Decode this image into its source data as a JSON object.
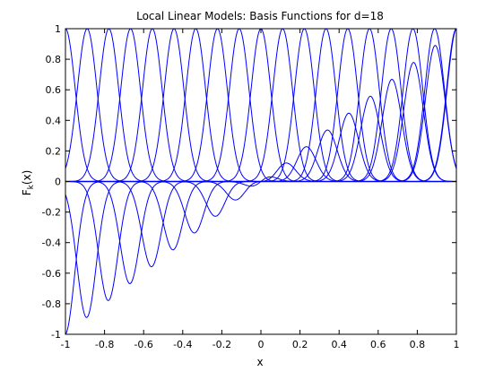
{
  "chart_data": {
    "type": "line",
    "title": "Local Linear Models: Basis Functions for d=18",
    "xlabel": "x",
    "ylabel_main": "F",
    "ylabel_sub": "k",
    "ylabel_tail": "(x)",
    "xlim": [
      -1,
      1
    ],
    "ylim": [
      -1,
      1
    ],
    "x_ticks": [
      -1,
      -0.8,
      -0.6,
      -0.4,
      -0.2,
      0,
      0.2,
      0.4,
      0.6,
      0.8,
      1
    ],
    "x_tick_labels": [
      "-1",
      "-0.8",
      "-0.6",
      "-0.4",
      "-0.2",
      "0",
      "0.2",
      "0.4",
      "0.6",
      "0.8",
      "1"
    ],
    "y_ticks": [
      -1,
      -0.8,
      -0.6,
      -0.4,
      -0.2,
      0,
      0.2,
      0.4,
      0.6,
      0.8,
      1
    ],
    "y_tick_labels": [
      "-1",
      "-0.8",
      "-0.6",
      "-0.4",
      "-0.2",
      "0",
      "0.2",
      "0.4",
      "0.6",
      "0.8",
      "1"
    ],
    "grid": false,
    "line_color": "#0000ff",
    "centers": [
      -1,
      -0.8889,
      -0.7778,
      -0.6667,
      -0.5556,
      -0.4444,
      -0.3333,
      -0.2222,
      -0.1111,
      0,
      0.1111,
      0.2222,
      0.3333,
      0.4444,
      0.5556,
      0.6667,
      0.7778,
      0.8889,
      1
    ],
    "bump_sigma": 0.05,
    "series": [
      {
        "kind": "bump"
      },
      {
        "kind": "linear"
      }
    ]
  }
}
